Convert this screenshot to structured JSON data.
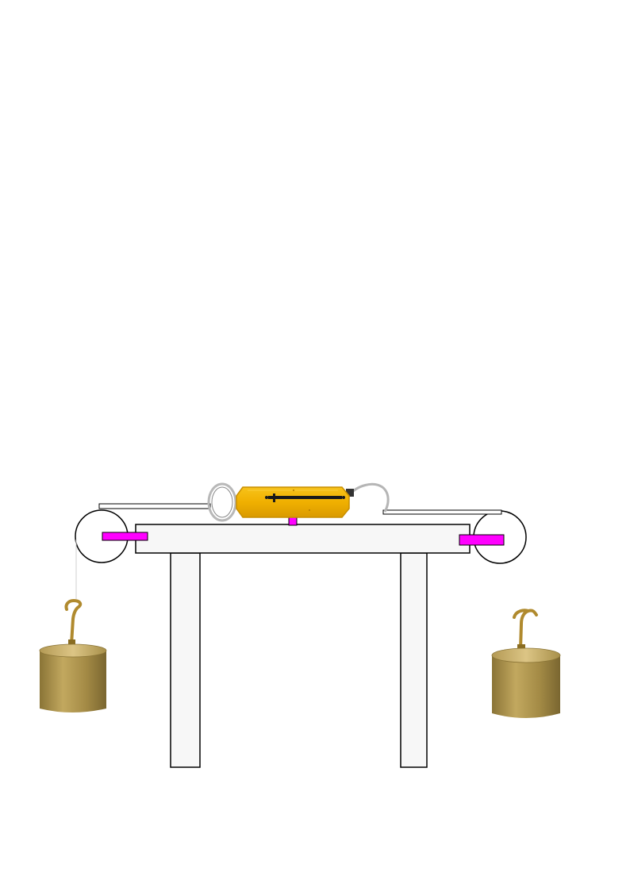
{
  "colors": {
    "background": "#ffffff",
    "outline": "#000000",
    "table_fill": "#f7f7f7",
    "clamp": "#ff00ff",
    "scale_body": "#f2b705",
    "scale_edge": "#c98f00",
    "scale_pointer": "#1a1a1a",
    "hook_metal": "#b0b0b0",
    "weight_brass": "#a8904a",
    "weight_top": "#cdb56c",
    "weight_hook": "#b08a2e"
  },
  "icons": {
    "spring_balance": "spring-balance-icon",
    "weight": "brass-weight-icon",
    "pulley": "pulley-wheel-icon"
  }
}
